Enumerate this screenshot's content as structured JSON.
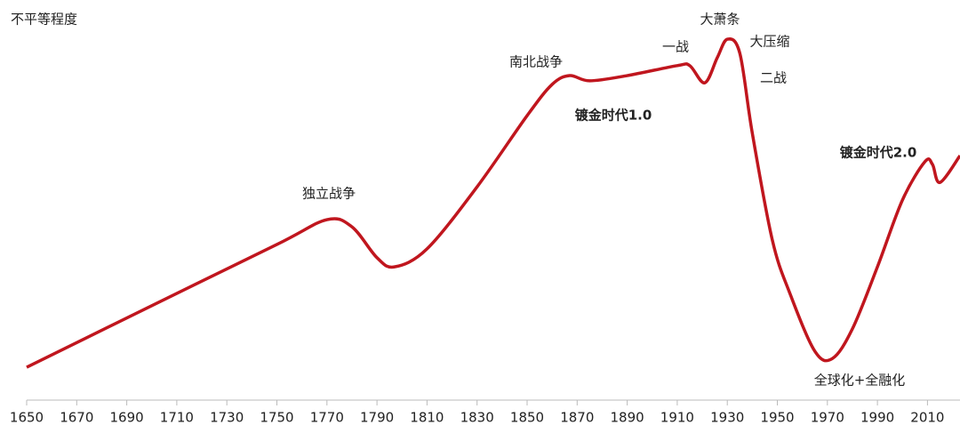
{
  "chart_data": {
    "type": "line",
    "y_label": "不平等程度",
    "x": [
      1650,
      1700,
      1750,
      1770,
      1780,
      1790,
      1797,
      1810,
      1830,
      1850,
      1860,
      1867,
      1875,
      1890,
      1910,
      1915,
      1921,
      1926,
      1930,
      1935,
      1940,
      1948,
      1955,
      1965,
      1972,
      1980,
      1990,
      2000,
      2009,
      2012,
      2015,
      2023
    ],
    "series": [
      {
        "color": "#c0161e",
        "values": [
          8.2,
          23.6,
          38.9,
          45.1,
          43.3,
          35.6,
          33.3,
          37.8,
          53.3,
          71.1,
          78.9,
          81.1,
          79.8,
          81.1,
          83.6,
          83.6,
          79.3,
          85.6,
          90.2,
          86.7,
          66.7,
          40,
          26.7,
          12.2,
          10.4,
          17.8,
          33.3,
          50,
          59.6,
          58.9,
          54.4,
          61.1
        ]
      }
    ],
    "xlim": [
      1650,
      2023
    ],
    "ylim": [
      0,
      100
    ],
    "xticks": [
      1650,
      1670,
      1690,
      1710,
      1730,
      1750,
      1770,
      1790,
      1810,
      1830,
      1850,
      1870,
      1890,
      1910,
      1930,
      1950,
      1970,
      1990,
      2010
    ],
    "annotations": [
      "独立战争",
      "南北战争",
      "镀金时代1.0",
      "一战",
      "大萧条",
      "大压缩",
      "二战",
      "镀金时代2.0",
      "全球化+全融化"
    ]
  }
}
